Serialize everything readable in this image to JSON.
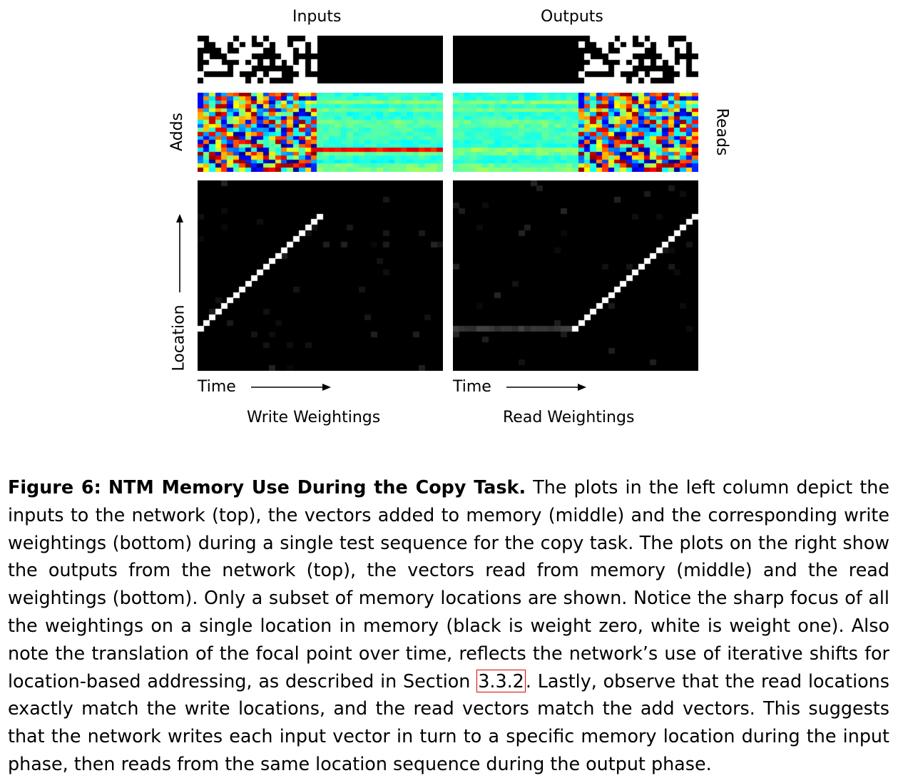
{
  "figure": {
    "col_titles": {
      "left": "Inputs",
      "right": "Outputs"
    },
    "row_labels": {
      "adds": "Adds",
      "reads": "Reads",
      "location": "Location"
    },
    "axis_labels": {
      "time_left": "Time",
      "time_right": "Time"
    },
    "subtitles": {
      "left": "Write Weightings",
      "right": "Read Weightings"
    },
    "colors": {
      "binary_on": "#ffffff",
      "binary_off": "#000000",
      "heatmap_colormap": "jet",
      "weight_colormap": "grayscale"
    }
  },
  "chart_data": [
    {
      "type": "heatmap",
      "panel": "inputs",
      "description_pattern": "binary bit vectors during input phase (left half), zeros after"
    },
    {
      "type": "heatmap",
      "panel": "outputs",
      "description_pattern": "zeros during input phase, binary bit vectors during output phase (right half)"
    },
    {
      "type": "heatmap",
      "panel": "adds",
      "colormap": "jet"
    },
    {
      "type": "heatmap",
      "panel": "reads",
      "colormap": "jet"
    },
    {
      "type": "heatmap",
      "panel": "write_weightings",
      "colormap": "gray",
      "ylabel": "Location",
      "xlabel": "Time"
    },
    {
      "type": "heatmap",
      "panel": "read_weightings",
      "colormap": "gray",
      "xlabel": "Time"
    }
  ],
  "caption": {
    "label": "Figure 6:",
    "title": "NTM Memory Use During the Copy Task.",
    "text_before_ref": "The plots in the left column depict the inputs to the network (top), the vectors added to memory (middle) and the corresponding write weightings (bottom) during a single test sequence for the copy task. The plots on the right show the outputs from the network (top), the vectors read from memory (middle) and the read weightings (bottom). Only a subset of memory locations are shown. Notice the sharp focus of all the weightings on a single location in memory (black is weight zero, white is weight one). Also note the translation of the focal point over time, reflects the network’s use of iterative shifts for location-based addressing, as described in Section",
    "ref": "3.3.2",
    "text_after_ref": ". Lastly, observe that the read locations exactly match the write locations, and the read vectors match the add vectors. This suggests that the network writes each input vector in turn to a specific memory location during the input phase, then reads from the same location sequence during the output phase."
  }
}
